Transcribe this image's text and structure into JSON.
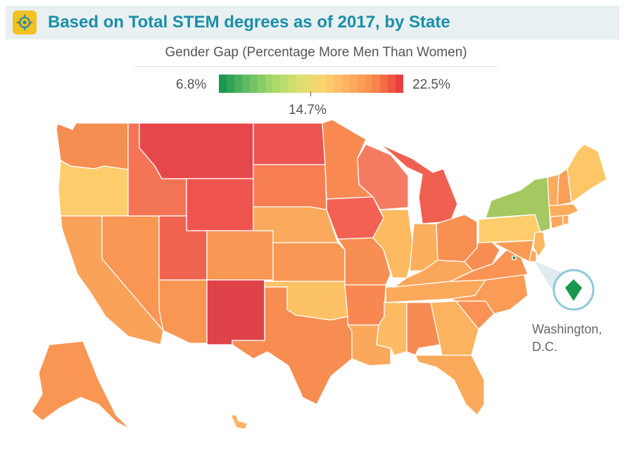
{
  "header": {
    "title": "Based on Total STEM degrees as of 2017, by State",
    "icon": "target-icon",
    "background": "#e9f0f2",
    "title_color": "#1a8fa8",
    "icon_color": "#f5c022"
  },
  "legend": {
    "title": "Gender Gap (Percentage More Men Than Women)",
    "min_label": "6.8%",
    "mid_label": "14.7%",
    "max_label": "22.5%",
    "min": 6.8,
    "mid": 14.7,
    "max": 22.5,
    "colors": [
      "#1a9850",
      "#66bd63",
      "#a6d96a",
      "#d9e070",
      "#fdd36e",
      "#fdae61",
      "#f88a4a",
      "#e9403f"
    ]
  },
  "map_data": {
    "type": "choropleth",
    "metric": "Gender Gap (Percentage More Men Than Women)",
    "state_colors": {
      "WA": "#f58e50",
      "OR": "#fdcd6c",
      "CA": "#f9a25a",
      "NV": "#f99654",
      "ID": "#f47556",
      "MT": "#e5474b",
      "WY": "#f0544e",
      "UT": "#f0634f",
      "AZ": "#f99653",
      "CO": "#f99755",
      "NM": "#e0424a",
      "ND": "#ec5550",
      "SD": "#f77d52",
      "NE": "#fbaa5d",
      "KS": "#f99854",
      "OK": "#fdc166",
      "TX": "#f88d51",
      "MN": "#f98b52",
      "IA": "#f26152",
      "MO": "#f88f52",
      "AR": "#f78851",
      "LA": "#fba85c",
      "WI": "#f57a62",
      "IL": "#fdba60",
      "MI": "#f06050",
      "IN": "#fbaf5d",
      "OH": "#f89052",
      "KY": "#fba75b",
      "TN": "#fbaa5c",
      "MS": "#fdbb63",
      "AL": "#f68c52",
      "GA": "#fcb35f",
      "FL": "#fba95b",
      "SC": "#f99254",
      "NC": "#fa9c56",
      "VA": "#f99455",
      "WV": "#f88e52",
      "PA": "#fdcc6b",
      "NY": "#a5c860",
      "NJ": "#fcb85f",
      "DE": "#fba85b",
      "MD": "#f99a55",
      "CT": "#fba65b",
      "RI": "#fbab5c",
      "MA": "#fbac5c",
      "VT": "#fbab5c",
      "NH": "#fb9e57",
      "ME": "#fdc768",
      "AK": "#f99654",
      "HI": "#fcb35f",
      "DC": "#1a9850"
    },
    "callout": {
      "state": "DC",
      "label_line1": "Washington,",
      "label_line2": "D.C.",
      "icon": "dc-shape-icon"
    }
  }
}
